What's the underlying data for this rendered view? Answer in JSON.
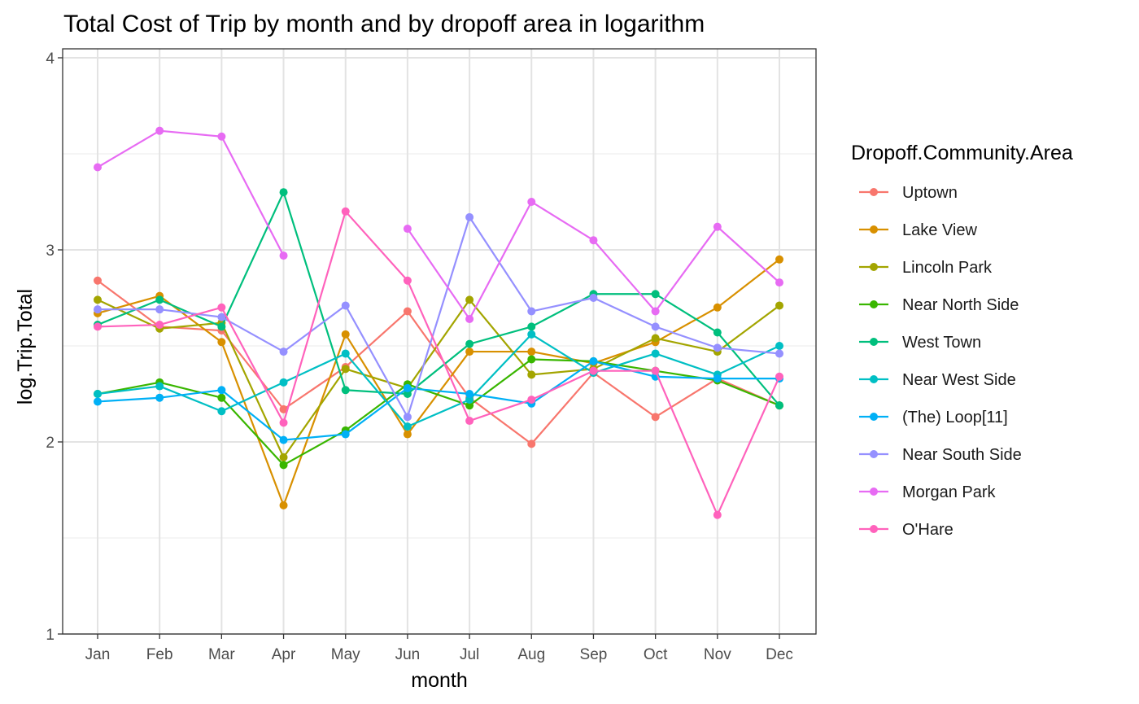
{
  "chart_data": {
    "type": "line",
    "title": "Total Cost of Trip by month and by dropoff area in logarithm",
    "xlabel": "month",
    "ylabel": "log.Trip.Total",
    "categories": [
      "Jan",
      "Feb",
      "Mar",
      "Apr",
      "May",
      "Jun",
      "Jul",
      "Aug",
      "Sep",
      "Oct",
      "Nov",
      "Dec"
    ],
    "ylim": [
      1,
      4
    ],
    "yticks": [
      1,
      2,
      3,
      4
    ],
    "grid": true,
    "legend": {
      "title": "Dropoff.Community.Area",
      "position": "right"
    },
    "series": [
      {
        "name": "Uptown",
        "color": "#F8766D",
        "values": [
          2.84,
          2.6,
          2.58,
          2.17,
          2.39,
          2.68,
          2.23,
          1.99,
          2.36,
          2.13,
          2.33,
          2.19
        ]
      },
      {
        "name": "Lake View",
        "color": "#D89000",
        "values": [
          2.67,
          2.76,
          2.52,
          1.67,
          2.56,
          2.04,
          2.47,
          2.47,
          2.41,
          2.52,
          2.7,
          2.95
        ]
      },
      {
        "name": "Lincoln Park",
        "color": "#A3A500",
        "values": [
          2.74,
          2.59,
          2.62,
          1.92,
          2.38,
          2.28,
          2.74,
          2.35,
          2.38,
          2.54,
          2.47,
          2.71
        ]
      },
      {
        "name": "Near North Side",
        "color": "#39B600",
        "values": [
          2.25,
          2.31,
          2.23,
          1.88,
          2.06,
          2.3,
          2.19,
          2.43,
          2.42,
          2.37,
          2.32,
          2.19
        ]
      },
      {
        "name": "West Town",
        "color": "#00BF7D",
        "values": [
          2.61,
          2.74,
          2.6,
          3.3,
          2.27,
          2.25,
          2.51,
          2.6,
          2.77,
          2.77,
          2.57,
          2.19
        ]
      },
      {
        "name": "Near West Side",
        "color": "#00BFC4",
        "values": [
          2.25,
          2.29,
          2.16,
          2.31,
          2.46,
          2.08,
          2.22,
          2.56,
          2.36,
          2.46,
          2.35,
          2.5
        ]
      },
      {
        "name": "(The)  Loop[11]",
        "color": "#00B0F6",
        "values": [
          2.21,
          2.23,
          2.27,
          2.01,
          2.04,
          2.28,
          2.25,
          2.2,
          2.42,
          2.34,
          2.33,
          2.33
        ]
      },
      {
        "name": "Near South Side",
        "color": "#9590FF",
        "values": [
          2.69,
          2.69,
          2.65,
          2.47,
          2.71,
          2.13,
          3.17,
          2.68,
          2.75,
          2.6,
          2.49,
          2.46
        ]
      },
      {
        "name": "Morgan Park",
        "color": "#E76BF3",
        "values": [
          3.43,
          3.62,
          3.59,
          2.97,
          null,
          3.11,
          2.64,
          3.25,
          3.05,
          2.68,
          3.12,
          2.83
        ]
      },
      {
        "name": "O'Hare",
        "color": "#FF62BC",
        "values": [
          2.6,
          2.61,
          2.7,
          2.1,
          3.2,
          2.84,
          2.11,
          2.22,
          2.37,
          2.37,
          1.62,
          2.34
        ]
      }
    ]
  }
}
